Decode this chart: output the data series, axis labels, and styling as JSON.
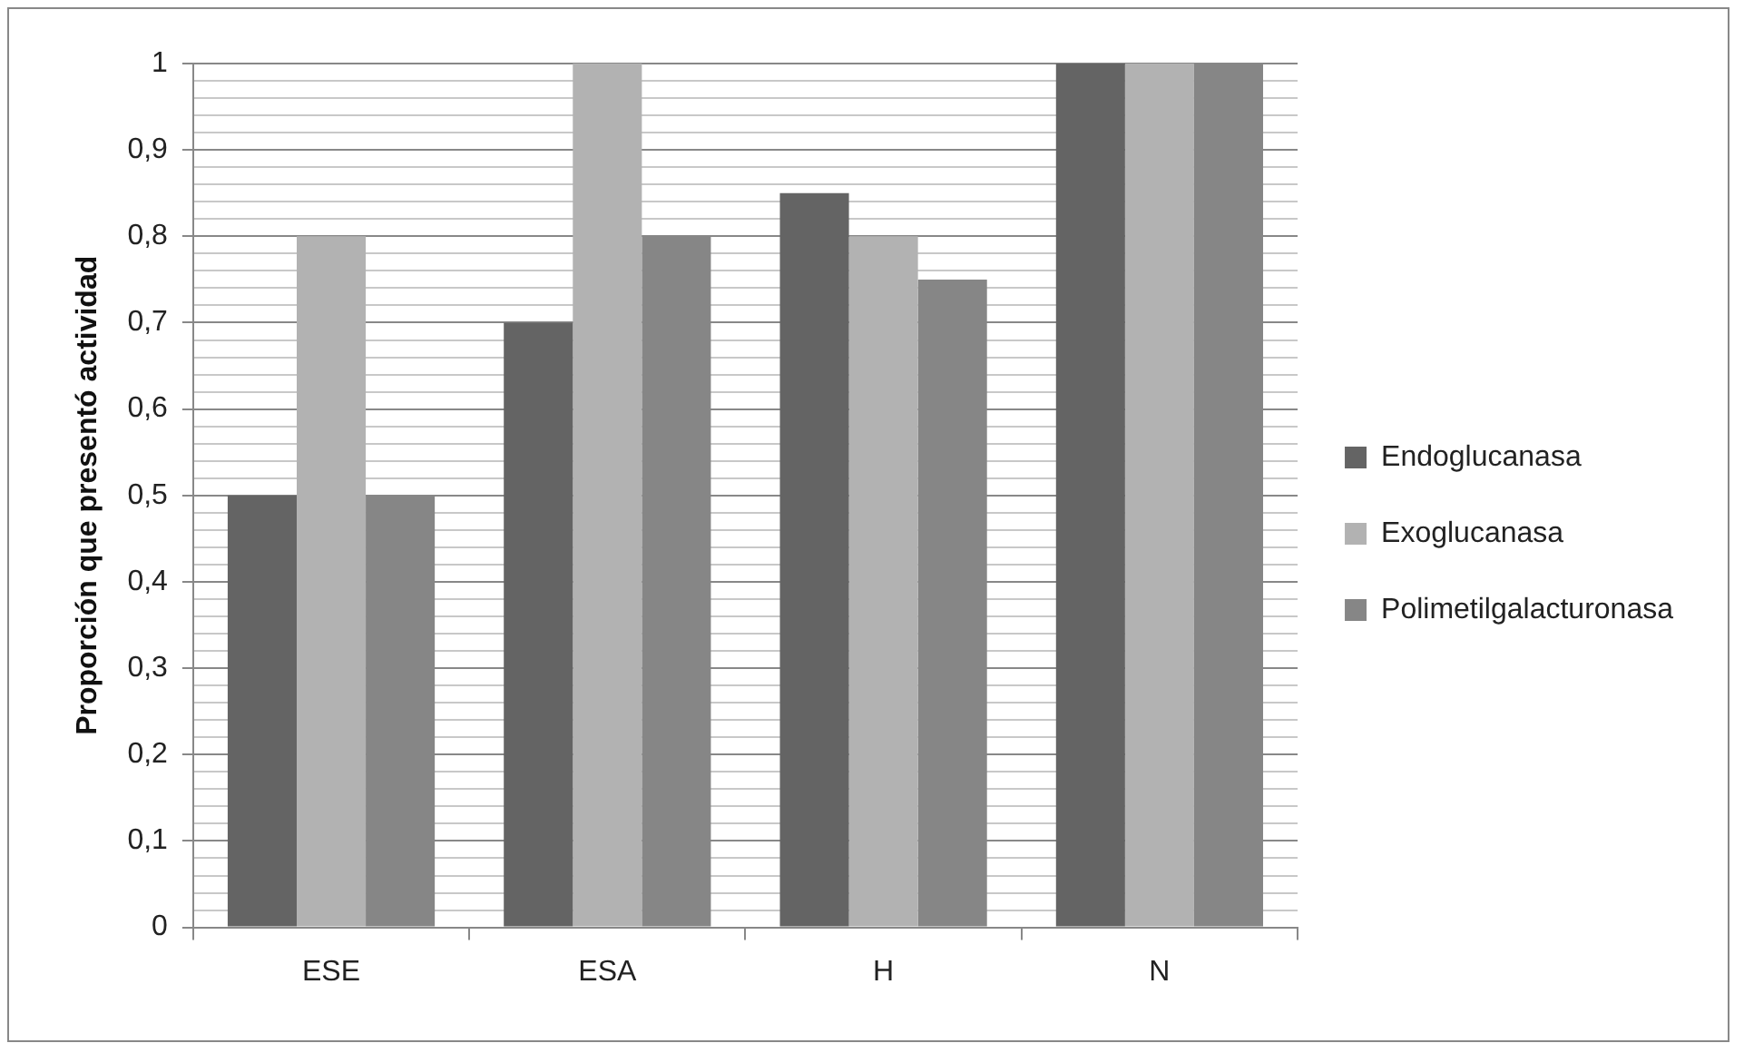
{
  "chart_data": {
    "type": "bar",
    "ylabel": "Proporción que presentó actividad",
    "categories": [
      "ESE",
      "ESA",
      "H",
      "N"
    ],
    "series": [
      {
        "name": "Endoglucanasa",
        "color": "#646464",
        "values": [
          0.5,
          0.7,
          0.85,
          1
        ]
      },
      {
        "name": "Exoglucanasa",
        "color": "#b2b2b2",
        "values": [
          0.8,
          1,
          0.8,
          1
        ]
      },
      {
        "name": "Polimetilgalacturonasa",
        "color": "#868686",
        "values": [
          0.5,
          0.8,
          0.75,
          1
        ]
      }
    ],
    "ylim": [
      0,
      1
    ],
    "yticks": [
      0,
      {
        "value": 0.02,
        "label": null
      },
      {
        "value": 0.04,
        "label": null
      },
      {
        "value": 0.06,
        "label": null
      },
      {
        "value": 0.08,
        "label": null
      },
      {
        "value": 0.1,
        "label": "0,1"
      },
      {
        "value": 0.12,
        "label": null
      },
      {
        "value": 0.14,
        "label": null
      },
      {
        "value": 0.16,
        "label": null
      },
      {
        "value": 0.18,
        "label": null
      },
      {
        "value": 0.2,
        "label": "0,2"
      },
      {
        "value": 0.22,
        "label": null
      },
      {
        "value": 0.24,
        "label": null
      },
      {
        "value": 0.26,
        "label": null
      },
      {
        "value": 0.28,
        "label": null
      },
      {
        "value": 0.3,
        "label": "0,3"
      },
      {
        "value": 0.32,
        "label": null
      },
      {
        "value": 0.34,
        "label": null
      },
      {
        "value": 0.36,
        "label": null
      },
      {
        "value": 0.38,
        "label": null
      },
      {
        "value": 0.4,
        "label": "0,4"
      },
      {
        "value": 0.42,
        "label": null
      },
      {
        "value": 0.44,
        "label": null
      },
      {
        "value": 0.46,
        "label": null
      },
      {
        "value": 0.48,
        "label": null
      },
      {
        "value": 0.5,
        "label": "0,5"
      },
      {
        "value": 0.52,
        "label": null
      },
      {
        "value": 0.54,
        "label": null
      },
      {
        "value": 0.56,
        "label": null
      },
      {
        "value": 0.58,
        "label": null
      },
      {
        "value": 0.6,
        "label": "0,6"
      },
      {
        "value": 0.62,
        "label": null
      },
      {
        "value": 0.64,
        "label": null
      },
      {
        "value": 0.66,
        "label": null
      },
      {
        "value": 0.68,
        "label": null
      },
      {
        "value": 0.7,
        "label": "0,7"
      },
      {
        "value": 0.72,
        "label": null
      },
      {
        "value": 0.74,
        "label": null
      },
      {
        "value": 0.76,
        "label": null
      },
      {
        "value": 0.78,
        "label": null
      },
      {
        "value": 0.8,
        "label": "0,8"
      },
      {
        "value": 0.82,
        "label": null
      },
      {
        "value": 0.84,
        "label": null
      },
      {
        "value": 0.86,
        "label": null
      },
      {
        "value": 0.88,
        "label": null
      },
      {
        "value": 0.9,
        "label": "0,9"
      },
      {
        "value": 0.92,
        "label": null
      },
      {
        "value": 0.94,
        "label": null
      },
      {
        "value": 0.96,
        "label": null
      },
      {
        "value": 0.98,
        "label": null
      },
      1
    ],
    "grid": "y",
    "legend": "right"
  }
}
